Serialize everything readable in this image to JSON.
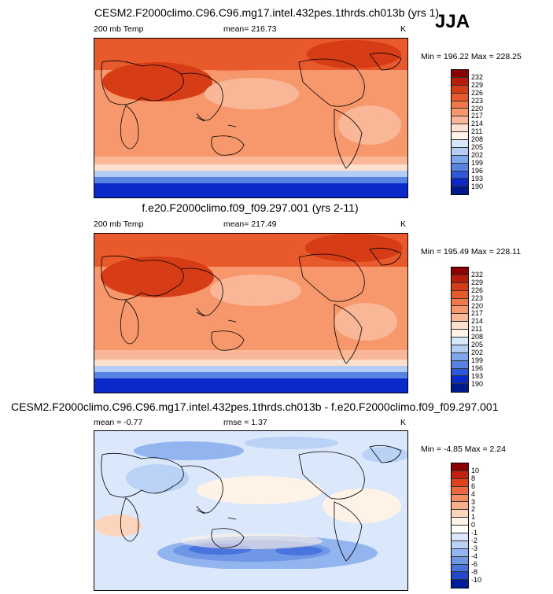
{
  "season": "JJA",
  "panels": [
    {
      "title": "CESM2.F2000climo.C96.C96.mg17.intel.432pes.1thrds.ch013b (yrs 1)",
      "left_label": "200 mb Temp",
      "center_label": "mean= 216.73",
      "unit": "K",
      "minmax": "Min = 196.22 Max = 228.25",
      "levels": [
        "232",
        "229",
        "226",
        "223",
        "220",
        "217",
        "214",
        "211",
        "208",
        "205",
        "202",
        "199",
        "196",
        "193",
        "190"
      ]
    },
    {
      "title": "f.e20.F2000climo.f09_f09.297.001 (yrs 2-11)",
      "left_label": "200 mb Temp",
      "center_label": "mean= 217.49",
      "unit": "K",
      "minmax": "Min = 195.49 Max = 228.11",
      "levels": [
        "232",
        "229",
        "226",
        "223",
        "220",
        "217",
        "214",
        "211",
        "208",
        "205",
        "202",
        "199",
        "196",
        "193",
        "190"
      ]
    },
    {
      "title": "CESM2.F2000climo.C96.C96.mg17.intel.432pes.1thrds.ch013b - f.e20.F2000climo.f09_f09.297.001",
      "left_label": "mean = -0.77",
      "center_label": "rmse = 1.37",
      "unit": "K",
      "minmax": "Min = -4.85 Max = 2.24",
      "levels": [
        "10",
        "8",
        "6",
        "4",
        "3",
        "2",
        "1",
        "0",
        "-1",
        "-2",
        "-3",
        "-4",
        "-6",
        "-8",
        "-10"
      ]
    }
  ],
  "colors": {
    "temp_scale": [
      "#8b0000",
      "#b81b08",
      "#d63c15",
      "#e85a2c",
      "#f27849",
      "#f6986c",
      "#f9b797",
      "#fde0cd",
      "#fff3ea",
      "#d6e6fb",
      "#b3cdf4",
      "#7ea6ec",
      "#5783e2",
      "#2e58db",
      "#0b28c9",
      "#001a8c"
    ],
    "diff_scale": [
      "#8b0000",
      "#c21f10",
      "#df4120",
      "#ee6a3e",
      "#f48e62",
      "#f8b08b",
      "#fcd4bc",
      "#fff2e6",
      "#ffffff",
      "#dbe8fb",
      "#bad2f5",
      "#93b5ef",
      "#6f97e6",
      "#4a74dd",
      "#2149c9",
      "#001c9c"
    ]
  }
}
